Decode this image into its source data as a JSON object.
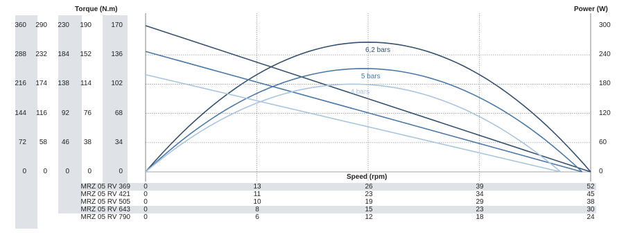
{
  "chart_data": {
    "type": "line",
    "torque_title": "Torque (N.m)",
    "power_title": "Power (W)",
    "speed_title": "Speed (rpm)",
    "torque_columns": [
      [
        "360",
        "288",
        "216",
        "144",
        "72",
        "0"
      ],
      [
        "290",
        "232",
        "174",
        "116",
        "58",
        "0"
      ],
      [
        "230",
        "184",
        "138",
        "92",
        "46",
        "0"
      ],
      [
        "190",
        "152",
        "114",
        "76",
        "38",
        "0"
      ],
      [
        "170",
        "136",
        "102",
        "68",
        "34",
        "0"
      ]
    ],
    "power_ticks": [
      "300",
      "240",
      "180",
      "120",
      "60",
      "0"
    ],
    "speed_rows": [
      {
        "model": "MRZ 05 RV 369",
        "values": [
          "0",
          "13",
          "26",
          "39",
          "52"
        ]
      },
      {
        "model": "MRZ 05 RV 421",
        "values": [
          "0",
          "11",
          "23",
          "34",
          "45"
        ]
      },
      {
        "model": "MRZ 05 RV 505",
        "values": [
          "0",
          "10",
          "19",
          "29",
          "38"
        ]
      },
      {
        "model": "MRZ 05 RV 643",
        "values": [
          "0",
          "8",
          "15",
          "23",
          "30"
        ]
      },
      {
        "model": "MRZ 05 RV 790",
        "values": [
          "0",
          "6",
          "12",
          "18",
          "24"
        ]
      }
    ],
    "x_reference_axis": "MRZ 05 RV 369 speed (rpm)",
    "xlim": [
      0,
      52
    ],
    "torque_ref_ylim": [
      0,
      170
    ],
    "power_ylim": [
      0,
      300
    ],
    "series": [
      {
        "name": "6,2 bars",
        "color": "#34506e",
        "torque": [
          [
            0,
            170
          ],
          [
            52,
            0
          ]
        ],
        "power_peak": 266,
        "power_end": 52
      },
      {
        "name": "5 bars",
        "color": "#4a78a6",
        "torque": [
          [
            0,
            140
          ],
          [
            51,
            0
          ]
        ],
        "power_peak": 212,
        "power_end": 51
      },
      {
        "name": "4 bars",
        "color": "#a9c4e0",
        "torque": [
          [
            0,
            113
          ],
          [
            48.5,
            0
          ]
        ],
        "power_peak": 180,
        "power_end": 48.5
      }
    ],
    "grid": true
  }
}
